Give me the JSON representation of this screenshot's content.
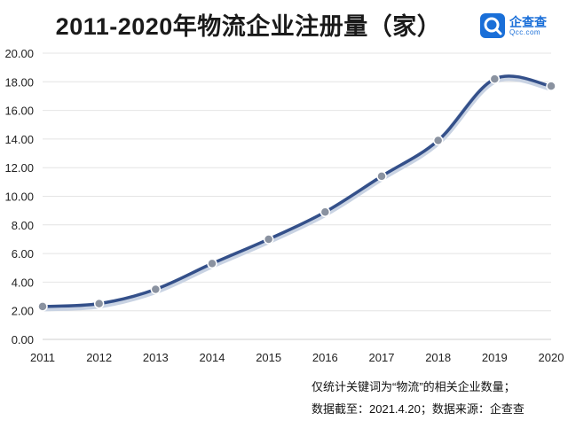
{
  "header": {
    "title": "2011-2020年物流企业注册量（家）"
  },
  "logo": {
    "name_cn": "企查查",
    "name_en": "Qcc.com",
    "icon": "qcc-logo-icon",
    "color": "#1a6fd8"
  },
  "notes": {
    "line1": "仅统计关键词为“物流”的相关企业数量；",
    "line2": "数据截至：2021.4.20；数据来源：企查查"
  },
  "chart_data": {
    "type": "line",
    "title": "2011-2020年物流企业注册量（家）",
    "xlabel": "",
    "ylabel": "",
    "categories": [
      "2011",
      "2012",
      "2013",
      "2014",
      "2015",
      "2016",
      "2017",
      "2018",
      "2019",
      "2020"
    ],
    "series": [
      {
        "values": [
          2.3,
          2.5,
          3.5,
          5.3,
          7.0,
          8.9,
          11.4,
          13.9,
          18.2,
          17.7
        ]
      }
    ],
    "ylim": [
      0,
      20
    ],
    "yticks": [
      "0.00",
      "2.00",
      "4.00",
      "6.00",
      "8.00",
      "10.00",
      "12.00",
      "14.00",
      "16.00",
      "18.00",
      "20.00"
    ],
    "grid": true,
    "legend": "none",
    "line_color": "#34508a",
    "marker_color": "#8a92a0"
  }
}
